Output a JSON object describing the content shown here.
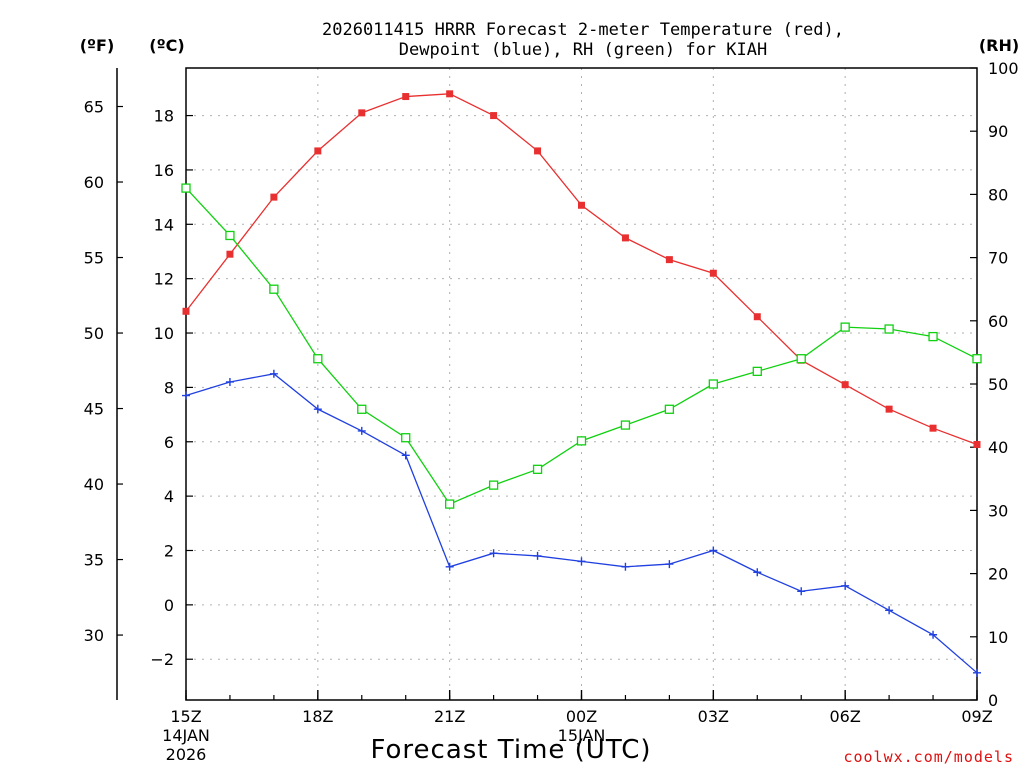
{
  "title": {
    "line1": "2026011415 HRRR Forecast 2-meter Temperature (red),",
    "line2": "Dewpoint (blue), RH (green) for KIAH"
  },
  "units": {
    "fahrenheit": "(ºF)",
    "celsius": "(ºC)",
    "rh": "(RH)"
  },
  "xlabel": "Forecast Time (UTC)",
  "credit": "coolwx.com/models",
  "colors": {
    "temperature": "#e83030",
    "dewpoint": "#2040e0",
    "rh": "#10d010"
  },
  "chart_data": {
    "type": "line",
    "x_hours": [
      0,
      1,
      2,
      3,
      4,
      5,
      6,
      7,
      8,
      9,
      10,
      11,
      12,
      13,
      14,
      15,
      16,
      17,
      18
    ],
    "x_ticks": [
      {
        "hour": 0,
        "label": "15Z",
        "sub1": "14JAN",
        "sub2": "2026"
      },
      {
        "hour": 3,
        "label": "18Z",
        "sub1": "",
        "sub2": ""
      },
      {
        "hour": 6,
        "label": "21Z",
        "sub1": "",
        "sub2": ""
      },
      {
        "hour": 9,
        "label": "00Z",
        "sub1": "15JAN",
        "sub2": ""
      },
      {
        "hour": 12,
        "label": "03Z",
        "sub1": "",
        "sub2": ""
      },
      {
        "hour": 15,
        "label": "06Z",
        "sub1": "",
        "sub2": ""
      },
      {
        "hour": 18,
        "label": "09Z",
        "sub1": "",
        "sub2": ""
      }
    ],
    "xlim": [
      0,
      18
    ],
    "ylim_celsius": [
      -3.5,
      19.75
    ],
    "ylim_rh": [
      0,
      100
    ],
    "celsius_ticks": [
      -2,
      0,
      2,
      4,
      6,
      8,
      10,
      12,
      14,
      16,
      18
    ],
    "fahrenheit_ticks": [
      30,
      35,
      40,
      45,
      50,
      55,
      60,
      65
    ],
    "rh_ticks": [
      0,
      10,
      20,
      30,
      40,
      50,
      60,
      70,
      80,
      90,
      100
    ],
    "series": [
      {
        "name": "Temperature",
        "unit": "C",
        "marker": "filled-square",
        "values": [
          10.8,
          12.9,
          15.0,
          16.7,
          18.1,
          18.7,
          18.8,
          18.0,
          16.7,
          14.7,
          13.5,
          12.7,
          12.2,
          10.6,
          9.0,
          8.1,
          7.2,
          6.5,
          5.9
        ]
      },
      {
        "name": "Dewpoint",
        "unit": "C",
        "marker": "plus",
        "values": [
          7.7,
          8.2,
          8.5,
          7.2,
          6.4,
          5.5,
          1.4,
          1.9,
          1.8,
          1.6,
          1.4,
          1.5,
          2.0,
          1.2,
          0.5,
          0.7,
          -0.2,
          -1.1,
          -2.5
        ]
      },
      {
        "name": "RH",
        "unit": "%",
        "marker": "open-square",
        "values": [
          81,
          73.5,
          65,
          54,
          46,
          41.5,
          31,
          34,
          36.5,
          41,
          43.5,
          46,
          50,
          52,
          54,
          59,
          58.7,
          57.5,
          54
        ]
      }
    ]
  }
}
